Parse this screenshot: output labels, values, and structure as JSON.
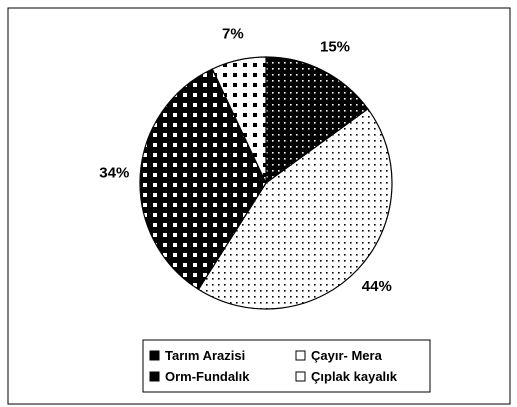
{
  "chart_data": {
    "type": "pie",
    "categories": [
      "Tarım Arazisi",
      "Çayır- Mera",
      "Orm-Fundalık",
      "Çıplak kayalık"
    ],
    "values": [
      15,
      44,
      34,
      7
    ],
    "value_labels": [
      "15%",
      "44%",
      "34%",
      "7%"
    ],
    "colors": [
      "#000000",
      "#ffffff",
      "#000000",
      "#ffffff"
    ],
    "legend": "bottom"
  }
}
